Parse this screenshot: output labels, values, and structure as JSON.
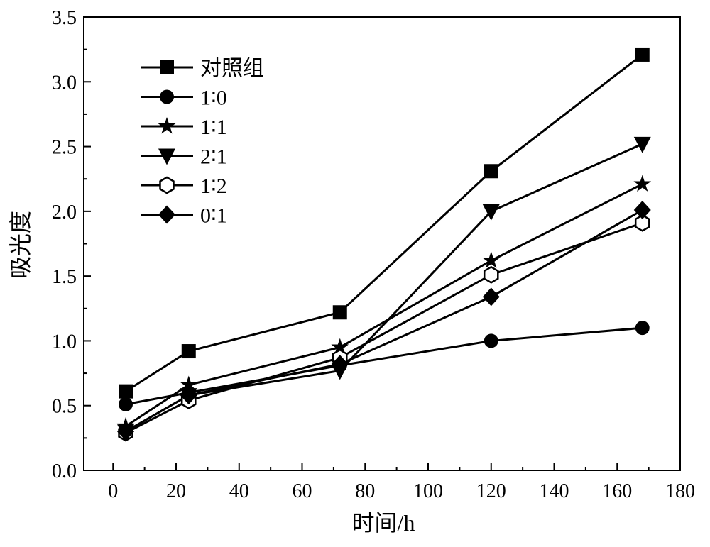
{
  "chart_data": {
    "type": "line",
    "title": "",
    "xlabel": "时间/h",
    "ylabel": "吸光度",
    "xlim": [
      -9.3,
      180
    ],
    "ylim": [
      0,
      3.5
    ],
    "xticks": [
      0,
      20,
      40,
      60,
      80,
      100,
      120,
      140,
      160,
      180
    ],
    "yticks": [
      0.0,
      0.5,
      1.0,
      1.5,
      2.0,
      2.5,
      3.0,
      3.5
    ],
    "xtick_labels": [
      "0",
      "20",
      "40",
      "60",
      "80",
      "100",
      "120",
      "140",
      "160",
      "180"
    ],
    "ytick_labels": [
      "0.0",
      "0.5",
      "1.0",
      "1.5",
      "2.0",
      "2.5",
      "3.0",
      "3.5"
    ],
    "grid": false,
    "legend_position": "top-left",
    "x": [
      4,
      24,
      72,
      120,
      168
    ],
    "series": [
      {
        "name": "对照组",
        "marker": "square",
        "values": [
          0.61,
          0.92,
          1.22,
          2.31,
          3.21
        ]
      },
      {
        "name": "1∶0",
        "marker": "circle",
        "values": [
          0.51,
          0.6,
          0.81,
          1.0,
          1.1
        ]
      },
      {
        "name": "1∶1",
        "marker": "star",
        "values": [
          0.34,
          0.66,
          0.95,
          1.62,
          2.21
        ]
      },
      {
        "name": "2∶1",
        "marker": "triangle-down",
        "values": [
          0.3,
          0.58,
          0.77,
          2.0,
          2.52
        ]
      },
      {
        "name": "1∶2",
        "marker": "hexagon-open",
        "values": [
          0.29,
          0.54,
          0.87,
          1.51,
          1.91
        ]
      },
      {
        "name": "0∶1",
        "marker": "diamond",
        "values": [
          0.3,
          0.58,
          0.82,
          1.34,
          2.01
        ]
      }
    ]
  }
}
